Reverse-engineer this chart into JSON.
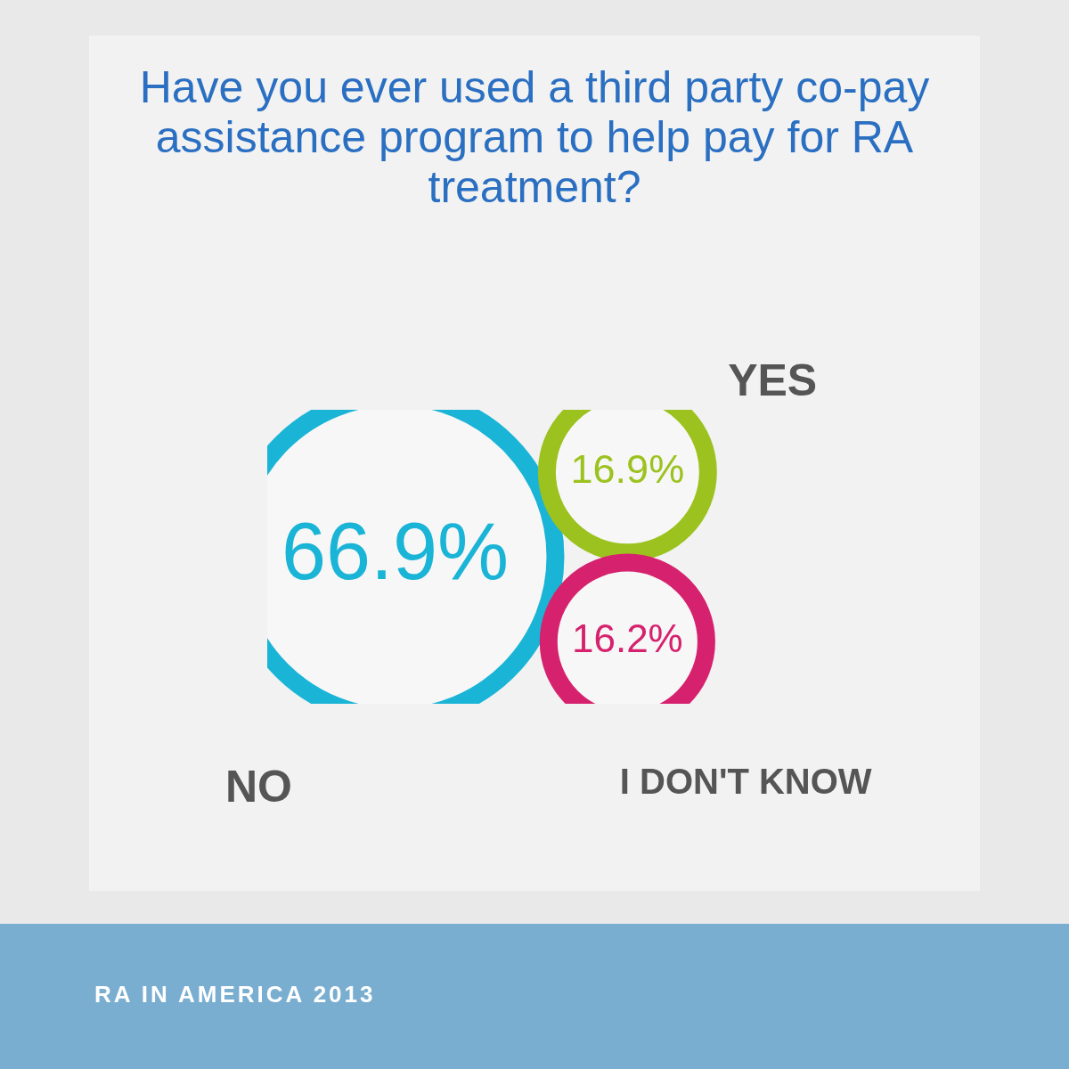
{
  "chart_data": {
    "type": "other",
    "title": "Have you ever used a third party co-pay assistance program to help pay for RA treatment?",
    "categories": [
      "NO",
      "YES",
      "I DON'T KNOW"
    ],
    "values": [
      66.9,
      16.9,
      16.2
    ],
    "value_labels": [
      "66.9%",
      "16.9%",
      "16.2%"
    ],
    "colors": [
      "#1ab4d6",
      "#9cc21f",
      "#d6226e"
    ],
    "annotations": [
      "RA IN AMERICA 2013"
    ]
  }
}
